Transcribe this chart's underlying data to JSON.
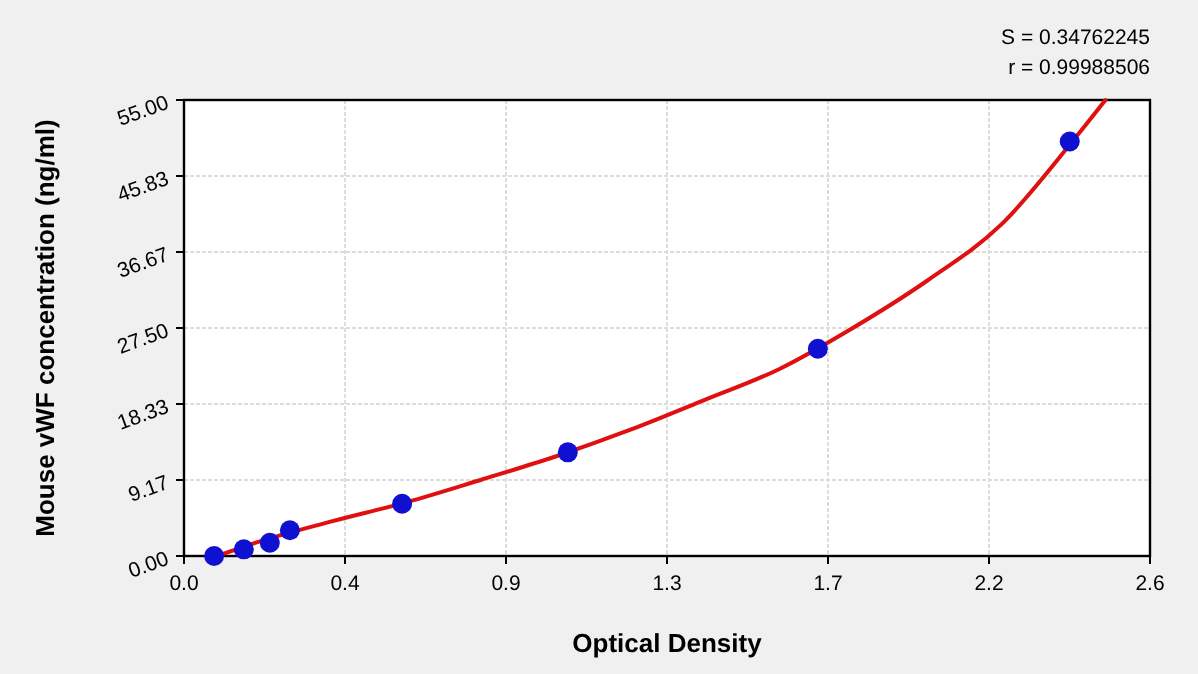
{
  "chart_data": {
    "type": "scatter",
    "xlabel": "Optical Density",
    "ylabel": "Mouse vWF concentration (ng/ml)",
    "annotations": [
      "S = 0.34762245",
      "r = 0.99988506"
    ],
    "xlim": [
      0,
      2.6
    ],
    "xticks": [
      {
        "value": 0,
        "label": "0.0"
      },
      {
        "value": 0.4333,
        "label": "0.4"
      },
      {
        "value": 0.8667,
        "label": "0.9"
      },
      {
        "value": 1.3,
        "label": "1.3"
      },
      {
        "value": 1.7333,
        "label": "1.7"
      },
      {
        "value": 2.1667,
        "label": "2.2"
      },
      {
        "value": 2.6,
        "label": "2.6"
      }
    ],
    "ylim": [
      0,
      55
    ],
    "yticks": [
      {
        "value": 0,
        "label": "0.00"
      },
      {
        "value": 9.1667,
        "label": "9.17"
      },
      {
        "value": 18.333,
        "label": "18.33"
      },
      {
        "value": 27.5,
        "label": "27.50"
      },
      {
        "value": 36.667,
        "label": "36.67"
      },
      {
        "value": 45.833,
        "label": "45.83"
      },
      {
        "value": 55,
        "label": "55.00"
      }
    ],
    "grid": true,
    "series": [
      {
        "type": "line",
        "color": "#e01010",
        "line_style": "solid",
        "x": [
          0.09,
          0.2,
          0.4,
          0.6,
          0.8,
          1.0,
          1.2,
          1.4,
          1.6,
          1.8,
          2.0,
          2.2,
          2.4,
          2.48
        ],
        "values": [
          0,
          1.7,
          4.2,
          6.5,
          9.2,
          12,
          15.2,
          18.8,
          22.5,
          27.5,
          33.2,
          40,
          50.5,
          55
        ]
      },
      {
        "color": "#1010d0",
        "marker": "circle",
        "x": [
          0.081,
          0.161,
          0.231,
          0.285,
          0.587,
          1.033,
          1.706,
          2.384
        ],
        "values": [
          0,
          0.8,
          1.6,
          3.1,
          6.3,
          12.5,
          25,
          50
        ]
      }
    ]
  }
}
